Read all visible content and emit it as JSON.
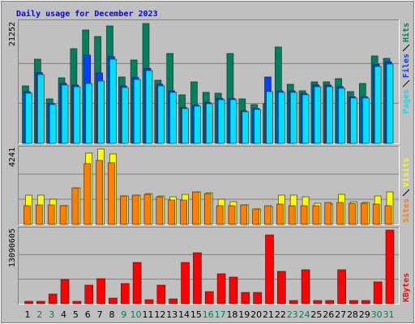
{
  "chart_data": [
    {
      "type": "bar",
      "title": "Daily usage for December 2023",
      "series": [
        {
          "name": "Hits",
          "color": "#00805c",
          "values": [
            10196,
            14934,
            7898,
            11632,
            16801,
            20104,
            18955,
            20822,
            11775,
            14791,
            21252,
            11201,
            15940,
            8616,
            10914,
            9047,
            8903,
            15940,
            7898,
            6893,
            7036,
            17088,
            10483,
            9334,
            10914,
            10914,
            11488,
            9190,
            10626,
            15509,
            15078
          ]
        },
        {
          "name": "Files",
          "color": "#0040ff",
          "values": [
            9170,
            12572,
            7100,
            10649,
            10354,
            15652,
            12493,
            15382,
            10205,
            11684,
            13312,
            10502,
            9318,
            6360,
            6804,
            7247,
            7987,
            7987,
            5768,
            6212,
            11775,
            9318,
            9318,
            8874,
            10354,
            10354,
            10058,
            8283,
            8283,
            14051,
            14495
          ]
        },
        {
          "name": "Pages",
          "color": "#00e0ff",
          "values": [
            8903,
            12206,
            6893,
            10339,
            10052,
            10626,
            11057,
            14934,
            9908,
            11344,
            12924,
            10196,
            9047,
            6175,
            6606,
            7036,
            7754,
            7754,
            5600,
            6031,
            9190,
            9047,
            9047,
            8616,
            10052,
            10052,
            9765,
            8042,
            8042,
            13642,
            14073
          ]
        }
      ],
      "ylim": [
        0,
        21252
      ],
      "yticks": [
        21252
      ],
      "grid": true
    },
    {
      "type": "bar",
      "series": [
        {
          "name": "Visits",
          "color": "#ffff00",
          "values": [
            1642,
            1642,
            1414,
            1049,
            2052,
            4013,
            4241,
            3967,
            1596,
            1642,
            1733,
            1596,
            1550,
            1687,
            1824,
            1778,
            1414,
            1277,
            1094,
            866,
            1003,
            1642,
            1642,
            1550,
            1186,
            1140,
            1687,
            1277,
            1231,
            1596,
            1824
          ]
        },
        {
          "name": "Sites",
          "color": "#ff8000",
          "values": [
            1049,
            1094,
            1094,
            1049,
            2052,
            3420,
            3602,
            3466,
            1596,
            1642,
            1687,
            1550,
            1368,
            1368,
            1824,
            1733,
            1049,
            1049,
            1094,
            866,
            1049,
            1140,
            1049,
            1049,
            1049,
            1231,
            1231,
            1186,
            1186,
            1140,
            1049
          ]
        }
      ],
      "ylim": [
        0,
        4241
      ],
      "yticks": [
        4241
      ],
      "grid": true
    },
    {
      "type": "bar",
      "categories": [
        "1",
        "2",
        "3",
        "4",
        "5",
        "6",
        "7",
        "8",
        "9",
        "10",
        "11",
        "12",
        "13",
        "14",
        "15",
        "16",
        "17",
        "18",
        "19",
        "20",
        "21",
        "22",
        "23",
        "24",
        "25",
        "26",
        "27",
        "28",
        "29",
        "30",
        "31"
      ],
      "category_colors": [
        "#000000",
        "#00805c",
        "#00805c",
        "#000000",
        "#000000",
        "#000000",
        "#000000",
        "#000000",
        "#00805c",
        "#00805c",
        "#000000",
        "#000000",
        "#000000",
        "#000000",
        "#000000",
        "#00805c",
        "#00805c",
        "#000000",
        "#000000",
        "#000000",
        "#000000",
        "#000000",
        "#00805c",
        "#00805c",
        "#000000",
        "#000000",
        "#000000",
        "#000000",
        "#000000",
        "#00805c",
        "#00805c"
      ],
      "series": [
        {
          "name": "KBytes",
          "color": "#ff0000",
          "values": [
            431559,
            431559,
            1726236,
            4315590,
            431559,
            3308619,
            4459443,
            1006971,
            3596325,
            7336503,
            719265,
            3308619,
            863118,
            7336503,
            9062739,
            2157795,
            5322561,
            4747149,
            2013942,
            2013942,
            12227505,
            5754120,
            575412,
            6041826,
            575412,
            575412,
            6041826,
            575412,
            575412,
            3884031,
            13090605
          ]
        }
      ],
      "ylim": [
        0,
        13090605
      ],
      "yticks": [
        13090605
      ],
      "grid": true
    }
  ]
}
